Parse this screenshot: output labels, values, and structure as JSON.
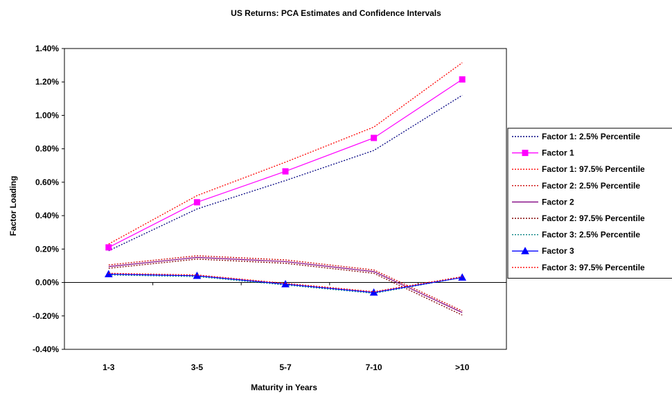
{
  "chart_data": {
    "type": "line",
    "title": "US Returns: PCA Estimates and Confidence Intervals",
    "xlabel": "Maturity in Years",
    "ylabel": "Factor Loading",
    "categories": [
      "1-3",
      "3-5",
      "5-7",
      "7-10",
      ">10"
    ],
    "ylim": [
      -0.4,
      1.4
    ],
    "yticks": [
      -0.4,
      -0.2,
      0.0,
      0.2,
      0.4,
      0.6,
      0.8,
      1.0,
      1.2,
      1.4
    ],
    "ytick_labels": [
      "-0.40%",
      "-0.20%",
      "0.00%",
      "0.20%",
      "0.40%",
      "0.60%",
      "0.80%",
      "1.00%",
      "1.20%",
      "1.40%"
    ],
    "grid": false,
    "legend_position": "right",
    "series": [
      {
        "name": "Factor 1: 2.5% Percentile",
        "values": [
          0.19,
          0.44,
          0.61,
          0.79,
          1.12
        ],
        "color": "#000080",
        "dash": "dot",
        "marker": "none"
      },
      {
        "name": "Factor 1",
        "values": [
          0.21,
          0.48,
          0.665,
          0.865,
          1.215
        ],
        "color": "#ff00ff",
        "dash": "solid",
        "marker": "square"
      },
      {
        "name": "Factor 1: 97.5% Percentile",
        "values": [
          0.23,
          0.52,
          0.72,
          0.93,
          1.315
        ],
        "color": "#ff0000",
        "dash": "dot",
        "marker": "none"
      },
      {
        "name": "Factor 2: 2.5% Percentile",
        "values": [
          0.105,
          0.16,
          0.135,
          0.075,
          -0.17
        ],
        "color": "#cc0000",
        "dash": "dot",
        "marker": "none"
      },
      {
        "name": "Factor 2",
        "values": [
          0.095,
          0.15,
          0.125,
          0.065,
          -0.18
        ],
        "color": "#800080",
        "dash": "solid",
        "marker": "none"
      },
      {
        "name": "Factor 2: 97.5% Percentile",
        "values": [
          0.085,
          0.14,
          0.115,
          0.055,
          -0.195
        ],
        "color": "#800000",
        "dash": "dot",
        "marker": "none"
      },
      {
        "name": "Factor 3: 2.5% Percentile",
        "values": [
          0.045,
          0.035,
          -0.015,
          -0.065,
          0.03
        ],
        "color": "#008080",
        "dash": "dot",
        "marker": "none"
      },
      {
        "name": "Factor 3",
        "values": [
          0.05,
          0.04,
          -0.01,
          -0.06,
          0.03
        ],
        "color": "#0000ff",
        "dash": "solid",
        "marker": "triangle"
      },
      {
        "name": "Factor 3: 97.5% Percentile",
        "values": [
          0.055,
          0.045,
          -0.005,
          -0.055,
          0.035
        ],
        "color": "#ff0000",
        "dash": "dot",
        "marker": "none"
      }
    ]
  }
}
